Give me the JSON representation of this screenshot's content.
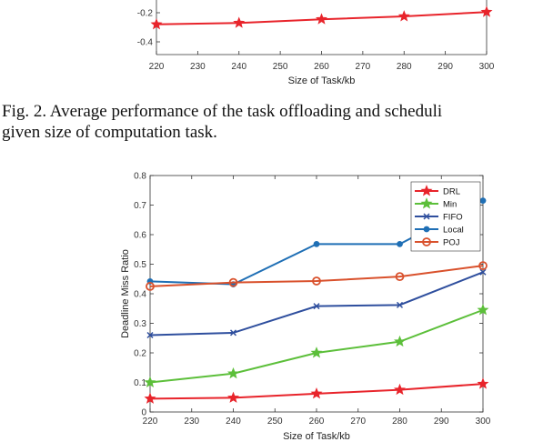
{
  "caption": {
    "line1": "Fig. 2.  Average performance of the task offloading and scheduli",
    "line2": "given size of computation task."
  },
  "chart_data": [
    {
      "type": "line",
      "partial": true,
      "x": [
        220,
        240,
        260,
        280,
        300
      ],
      "xlabel": "Size of Task/kb",
      "xticks": [
        "220",
        "230",
        "240",
        "250",
        "260",
        "270",
        "280",
        "290",
        "300"
      ],
      "yticks": [
        "-0.2",
        "-0.4"
      ],
      "series": [
        {
          "name": "DRL",
          "color": "#e8242b",
          "marker": "star",
          "values": [
            -0.28,
            -0.27,
            -0.245,
            -0.225,
            -0.195
          ]
        }
      ]
    },
    {
      "type": "line",
      "x": [
        220,
        240,
        260,
        280,
        300
      ],
      "xlabel": "Size of Task/kb",
      "ylabel": "Deadline Miss Ratio",
      "xlim": [
        220,
        300
      ],
      "ylim": [
        0,
        0.8
      ],
      "xticks": [
        "220",
        "230",
        "240",
        "250",
        "260",
        "270",
        "280",
        "290",
        "300"
      ],
      "yticks": [
        "0",
        "0.1",
        "0.2",
        "0.3",
        "0.4",
        "0.5",
        "0.6",
        "0.7",
        "0.8"
      ],
      "grid": false,
      "legend": "top-right",
      "series": [
        {
          "name": "DRL",
          "color": "#e8242b",
          "marker": "star",
          "values": [
            0.045,
            0.048,
            0.062,
            0.075,
            0.095
          ]
        },
        {
          "name": "Min",
          "color": "#5cbf3a",
          "marker": "star",
          "values": [
            0.1,
            0.13,
            0.2,
            0.238,
            0.345
          ]
        },
        {
          "name": "FIFO",
          "color": "#2f4f9e",
          "marker": "x",
          "values": [
            0.26,
            0.268,
            0.358,
            0.362,
            0.473
          ]
        },
        {
          "name": "Local",
          "color": "#1f6fb5",
          "marker": "dot",
          "values": [
            0.442,
            0.432,
            0.568,
            0.568,
            0.715
          ]
        },
        {
          "name": "POJ",
          "color": "#d9512c",
          "marker": "circle",
          "values": [
            0.425,
            0.438,
            0.443,
            0.458,
            0.495
          ]
        }
      ]
    }
  ]
}
